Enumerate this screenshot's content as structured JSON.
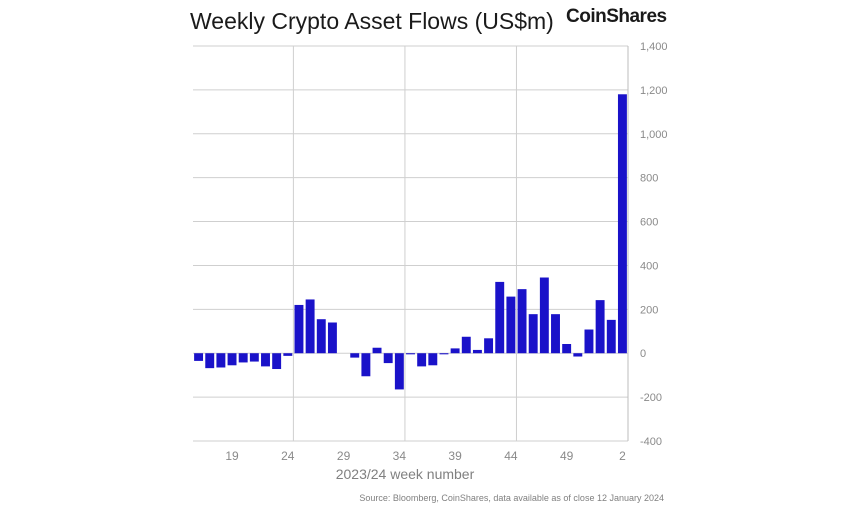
{
  "brand": "CoinShares",
  "chart_data": {
    "type": "bar",
    "title": "Weekly Crypto Asset Flows (US$m)",
    "xlabel": "2023/24 week number",
    "ylabel": "",
    "source": "Source: Bloomberg, CoinShares, data available as of close 12 January 2024",
    "ylim": [
      -400,
      1400
    ],
    "yticks": [
      -400,
      -200,
      0,
      200,
      400,
      600,
      800,
      1000,
      1200,
      1400
    ],
    "ytick_labels": [
      "-400",
      "-200",
      "0",
      "200",
      "400",
      "600",
      "800",
      "1,000",
      "1,200",
      "1,400"
    ],
    "xtick_labels": [
      {
        "label": "19",
        "index": 3
      },
      {
        "label": "24",
        "index": 8
      },
      {
        "label": "29",
        "index": 13
      },
      {
        "label": "34",
        "index": 18
      },
      {
        "label": "39",
        "index": 23
      },
      {
        "label": "44",
        "index": 28
      },
      {
        "label": "49",
        "index": 33
      },
      {
        "label": "2",
        "index": 38
      }
    ],
    "vgrid_after_index": [
      8,
      18,
      28,
      38
    ],
    "bar_color": "#1a12c9",
    "grid_color": "#cfcfcf",
    "categories": [
      "16",
      "17",
      "18",
      "19",
      "20",
      "21",
      "22",
      "23",
      "24",
      "25",
      "26",
      "27",
      "28",
      "29",
      "30",
      "31",
      "32",
      "33",
      "34",
      "35",
      "36",
      "37",
      "38",
      "39",
      "40",
      "41",
      "42",
      "43",
      "44",
      "45",
      "46",
      "47",
      "48",
      "49",
      "50",
      "51",
      "52",
      "1",
      "2"
    ],
    "values": [
      -35,
      -68,
      -65,
      -55,
      -42,
      -38,
      -60,
      -72,
      -12,
      220,
      245,
      155,
      140,
      0,
      -20,
      -105,
      25,
      -45,
      -165,
      -5,
      -60,
      -55,
      -5,
      22,
      75,
      15,
      68,
      325,
      258,
      292,
      178,
      345,
      178,
      42,
      -15,
      108,
      242,
      152,
      1180
    ]
  }
}
